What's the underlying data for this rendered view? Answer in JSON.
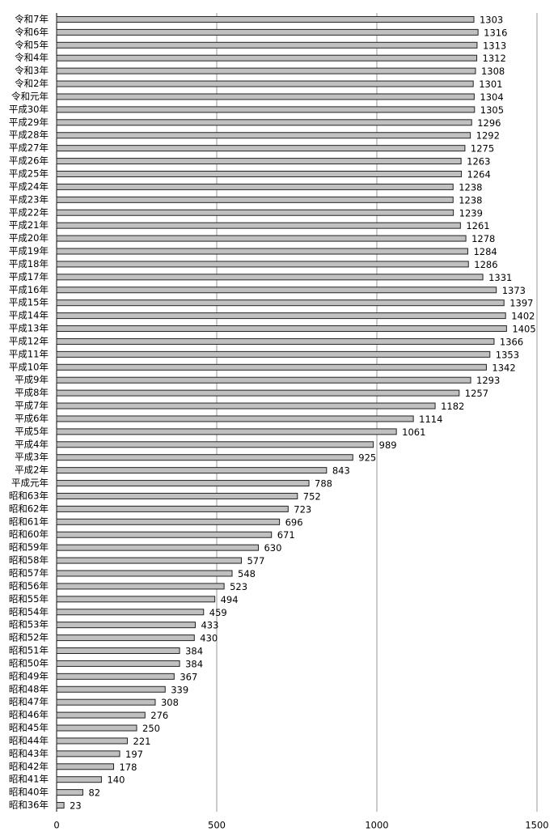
{
  "chart_data": {
    "type": "barh",
    "categories": [
      "令和7年",
      "令和6年",
      "令和5年",
      "令和4年",
      "令和3年",
      "令和2年",
      "令和元年",
      "平成30年",
      "平成29年",
      "平成28年",
      "平成27年",
      "平成26年",
      "平成25年",
      "平成24年",
      "平成23年",
      "平成22年",
      "平成21年",
      "平成20年",
      "平成19年",
      "平成18年",
      "平成17年",
      "平成16年",
      "平成15年",
      "平成14年",
      "平成13年",
      "平成12年",
      "平成11年",
      "平成10年",
      "平成9年",
      "平成8年",
      "平成7年",
      "平成6年",
      "平成5年",
      "平成4年",
      "平成3年",
      "平成2年",
      "平成元年",
      "昭和63年",
      "昭和62年",
      "昭和61年",
      "昭和60年",
      "昭和59年",
      "昭和58年",
      "昭和57年",
      "昭和56年",
      "昭和55年",
      "昭和54年",
      "昭和53年",
      "昭和52年",
      "昭和51年",
      "昭和50年",
      "昭和49年",
      "昭和48年",
      "昭和47年",
      "昭和46年",
      "昭和45年",
      "昭和44年",
      "昭和43年",
      "昭和42年",
      "昭和41年",
      "昭和40年",
      "昭和36年"
    ],
    "values": [
      1303,
      1316,
      1313,
      1312,
      1308,
      1301,
      1304,
      1305,
      1296,
      1292,
      1275,
      1263,
      1264,
      1238,
      1238,
      1239,
      1261,
      1278,
      1284,
      1286,
      1331,
      1373,
      1397,
      1402,
      1405,
      1366,
      1353,
      1342,
      1293,
      1257,
      1182,
      1114,
      1061,
      989,
      925,
      843,
      788,
      752,
      723,
      696,
      671,
      630,
      577,
      548,
      523,
      494,
      459,
      433,
      430,
      384,
      384,
      367,
      339,
      308,
      276,
      250,
      221,
      197,
      178,
      140,
      82,
      23
    ],
    "color": "#c0c0c0",
    "xlim": [
      0,
      1500
    ],
    "xticks": [
      0,
      500,
      1000,
      1500
    ],
    "grid": true
  }
}
